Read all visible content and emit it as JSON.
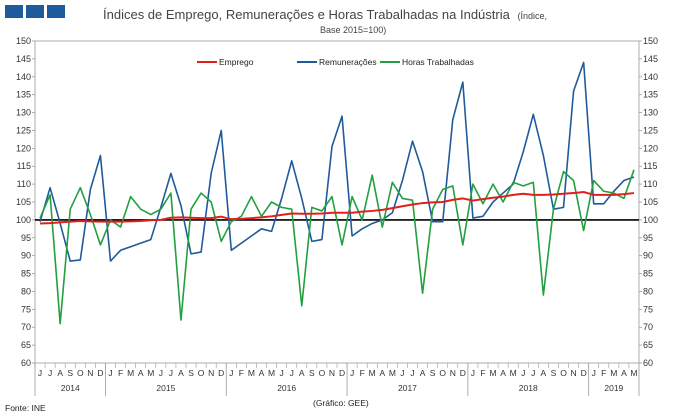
{
  "logo": {
    "name": "logo-bars",
    "color": "#1f5b9c"
  },
  "title": {
    "main": "Índices de Emprego, Remunerações e Horas Trabalhadas na Indústria",
    "sub1": "(Índice,",
    "sub2": "Base 2015=100)"
  },
  "source": "Fonte: INE",
  "credit": "(Gráfico: GEE)",
  "chart_data": {
    "type": "line",
    "ylim": [
      60,
      150
    ],
    "ytick_step": 5,
    "y_ticks": [
      60,
      65,
      70,
      75,
      80,
      85,
      90,
      95,
      100,
      105,
      110,
      115,
      120,
      125,
      130,
      135,
      140,
      145,
      150
    ],
    "reference_line": 100,
    "legend_position": "top",
    "month_labels": [
      "J",
      "J",
      "A",
      "S",
      "O",
      "N",
      "D",
      "J",
      "F",
      "M",
      "A",
      "M",
      "J",
      "J",
      "A",
      "S",
      "O",
      "N",
      "D",
      "J",
      "F",
      "M",
      "A",
      "M",
      "J",
      "J",
      "A",
      "S",
      "O",
      "N",
      "D",
      "J",
      "F",
      "M",
      "A",
      "M",
      "J",
      "J",
      "A",
      "S",
      "O",
      "N",
      "D",
      "J",
      "F",
      "M",
      "A",
      "M",
      "J",
      "J",
      "A",
      "S",
      "O",
      "N",
      "D",
      "J",
      "F",
      "M",
      "A",
      "M"
    ],
    "year_labels": [
      "2014",
      "2015",
      "2016",
      "2017",
      "2018",
      "2019"
    ],
    "series": [
      {
        "name": "Emprego",
        "color": "#e0201b",
        "values": [
          99.0,
          99.1,
          99.3,
          99.5,
          99.7,
          99.6,
          99.5,
          99.5,
          99.5,
          99.6,
          99.7,
          99.9,
          100.0,
          100.6,
          100.7,
          100.6,
          100.5,
          100.5,
          100.9,
          100.2,
          100.3,
          100.5,
          100.7,
          101.0,
          101.4,
          101.8,
          101.7,
          101.7,
          101.8,
          102.0,
          102.0,
          102.0,
          102.3,
          102.5,
          102.8,
          103.3,
          103.8,
          104.3,
          104.7,
          104.9,
          105.0,
          105.6,
          106.0,
          105.4,
          105.8,
          106.2,
          106.5,
          107.0,
          107.3,
          107.0,
          107.0,
          107.1,
          107.3,
          107.5,
          107.8,
          107.0,
          107.0,
          107.0,
          107.2,
          107.5
        ]
      },
      {
        "name": "Remunerações",
        "color": "#1f5b9c",
        "values": [
          99.5,
          109.0,
          99.0,
          88.5,
          88.8,
          108.5,
          118.0,
          88.5,
          91.5,
          92.5,
          93.5,
          94.5,
          103.5,
          113.0,
          104.0,
          90.5,
          91.0,
          113.0,
          125.0,
          91.5,
          93.5,
          95.5,
          97.5,
          96.8,
          106.0,
          116.5,
          106.0,
          94.0,
          94.5,
          120.5,
          129.0,
          95.5,
          97.5,
          99.0,
          100.0,
          102.0,
          111.0,
          122.0,
          113.5,
          99.5,
          99.5,
          128.0,
          138.5,
          100.5,
          101.0,
          105.0,
          107.5,
          110.0,
          119.0,
          129.5,
          118.0,
          103.0,
          103.5,
          136.0,
          144.0,
          104.5,
          104.5,
          108.0,
          111.0,
          112.0
        ]
      },
      {
        "name": "Horas Trabalhadas",
        "color": "#22a040",
        "values": [
          100.5,
          107.0,
          71.0,
          103.0,
          109.0,
          101.5,
          93.0,
          100.0,
          98.0,
          106.5,
          103.0,
          101.5,
          103.0,
          107.5,
          72.0,
          103.0,
          107.5,
          105.0,
          94.0,
          99.5,
          101.0,
          106.5,
          101.0,
          105.0,
          103.5,
          103.0,
          76.0,
          103.5,
          102.5,
          106.5,
          93.0,
          106.5,
          100.0,
          112.5,
          98.0,
          110.5,
          106.0,
          105.5,
          79.5,
          103.0,
          108.5,
          109.5,
          93.0,
          110.0,
          104.5,
          110.0,
          105.0,
          110.5,
          109.5,
          110.5,
          79.0,
          103.0,
          113.5,
          111.0,
          97.0,
          111.0,
          108.0,
          107.5,
          106.0,
          114.0
        ]
      }
    ]
  }
}
